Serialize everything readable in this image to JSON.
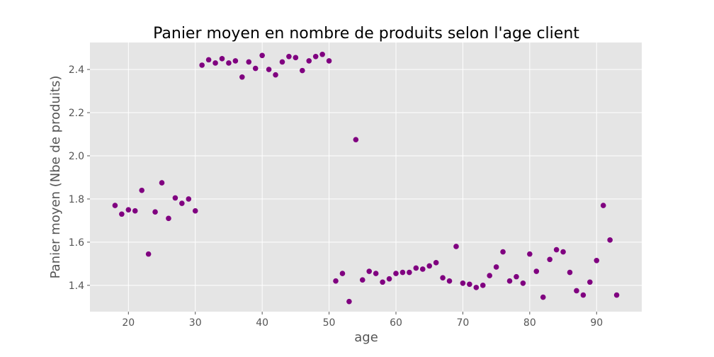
{
  "chart_data": {
    "type": "scatter",
    "title": "Panier moyen en nombre de produits selon l'age client",
    "xlabel": "age",
    "ylabel": "Panier moyen (Nbe de produits)",
    "xlim": [
      14.25,
      96.75
    ],
    "ylim": [
      1.278,
      2.525
    ],
    "xticks": [
      20,
      30,
      40,
      50,
      60,
      70,
      80,
      90
    ],
    "yticks": [
      1.4,
      1.6,
      1.8,
      2.0,
      2.2,
      2.4
    ],
    "ytick_labels": [
      "1.4",
      "1.6",
      "1.8",
      "2.0",
      "2.2",
      "2.4"
    ],
    "grid": true,
    "marker_color": "#800080",
    "background": "#e5e5e5",
    "points": [
      [
        18,
        1.77
      ],
      [
        19,
        1.73
      ],
      [
        20,
        1.75
      ],
      [
        21,
        1.745
      ],
      [
        22,
        1.84
      ],
      [
        23,
        1.545
      ],
      [
        24,
        1.74
      ],
      [
        25,
        1.875
      ],
      [
        26,
        1.71
      ],
      [
        27,
        1.805
      ],
      [
        28,
        1.78
      ],
      [
        29,
        1.8
      ],
      [
        30,
        1.745
      ],
      [
        31,
        2.42
      ],
      [
        32,
        2.445
      ],
      [
        33,
        2.43
      ],
      [
        34,
        2.45
      ],
      [
        35,
        2.43
      ],
      [
        36,
        2.44
      ],
      [
        37,
        2.365
      ],
      [
        38,
        2.435
      ],
      [
        39,
        2.405
      ],
      [
        40,
        2.465
      ],
      [
        41,
        2.4
      ],
      [
        42,
        2.375
      ],
      [
        43,
        2.435
      ],
      [
        44,
        2.46
      ],
      [
        45,
        2.455
      ],
      [
        46,
        2.395
      ],
      [
        47,
        2.44
      ],
      [
        48,
        2.46
      ],
      [
        49,
        2.47
      ],
      [
        50,
        2.44
      ],
      [
        51,
        1.42
      ],
      [
        52,
        1.455
      ],
      [
        53,
        1.325
      ],
      [
        54,
        2.075
      ],
      [
        55,
        1.425
      ],
      [
        56,
        1.465
      ],
      [
        57,
        1.455
      ],
      [
        58,
        1.415
      ],
      [
        59,
        1.43
      ],
      [
        60,
        1.455
      ],
      [
        61,
        1.46
      ],
      [
        62,
        1.46
      ],
      [
        63,
        1.48
      ],
      [
        64,
        1.475
      ],
      [
        65,
        1.49
      ],
      [
        66,
        1.505
      ],
      [
        67,
        1.435
      ],
      [
        68,
        1.42
      ],
      [
        69,
        1.58
      ],
      [
        70,
        1.41
      ],
      [
        71,
        1.405
      ],
      [
        72,
        1.39
      ],
      [
        73,
        1.4
      ],
      [
        74,
        1.445
      ],
      [
        75,
        1.485
      ],
      [
        76,
        1.555
      ],
      [
        77,
        1.42
      ],
      [
        78,
        1.44
      ],
      [
        79,
        1.41
      ],
      [
        80,
        1.545
      ],
      [
        81,
        1.465
      ],
      [
        82,
        1.345
      ],
      [
        83,
        1.52
      ],
      [
        84,
        1.565
      ],
      [
        85,
        1.555
      ],
      [
        86,
        1.46
      ],
      [
        87,
        1.375
      ],
      [
        88,
        1.355
      ],
      [
        89,
        1.415
      ],
      [
        90,
        1.515
      ],
      [
        91,
        1.77
      ],
      [
        92,
        1.61
      ],
      [
        93,
        1.355
      ]
    ]
  }
}
